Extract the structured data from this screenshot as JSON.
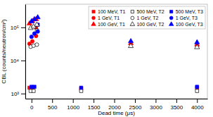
{
  "chart_data": {
    "type": "scatter",
    "xlabel": "Dead time (μs)",
    "ylabel": "CBL (counts/neutron/cm²)",
    "log": "y",
    "grid": false,
    "legend": "upper right",
    "xlim": [
      -150,
      4250
    ],
    "ylim": [
      700,
      500000
    ],
    "xticks": [
      0,
      500,
      1000,
      1500,
      2000,
      2500,
      3000,
      3500,
      4000
    ],
    "yticks": [
      {
        "value": 1000,
        "label": "10³"
      },
      {
        "value": 10000,
        "label": "10⁴"
      },
      {
        "value": 100000,
        "label": "10⁵"
      }
    ],
    "series": [
      {
        "name": "100 MeV, T1",
        "color": "red",
        "marker": "square",
        "x": [
          -50,
          20,
          110,
          1200,
          4000
        ],
        "values": [
          1500,
          1500,
          100000,
          1400,
          1500
        ]
      },
      {
        "name": "500 MeV, T2",
        "color": "black",
        "marker": "open-square",
        "x": [
          -20,
          50,
          130,
          1200,
          4000
        ],
        "values": [
          1200,
          1200,
          80000,
          1200,
          1200
        ]
      },
      {
        "name": "500 MeV, T3",
        "color": "blue",
        "marker": "square",
        "x": [
          0,
          70,
          150,
          1200,
          4000
        ],
        "values": [
          1600,
          1600,
          120000,
          1500,
          1600
        ]
      },
      {
        "name": "1 GeV, T1",
        "color": "red",
        "marker": "circle",
        "x": [
          -50,
          20,
          110
        ],
        "values": [
          32000,
          38000,
          55000
        ]
      },
      {
        "name": "1 GeV, T2",
        "color": "black",
        "marker": "open-circle",
        "x": [
          -20,
          50,
          130
        ],
        "values": [
          26000,
          28000,
          30000
        ]
      },
      {
        "name": "1 GeV, T3",
        "color": "blue",
        "marker": "circle",
        "x": [
          0,
          70,
          150
        ],
        "values": [
          52000,
          65000,
          75000
        ]
      },
      {
        "name": "100 GeV, T1",
        "color": "red",
        "marker": "triangle",
        "x": [
          -50,
          20,
          110,
          2400,
          4000
        ],
        "values": [
          130000,
          155000,
          175000,
          33000,
          30000
        ]
      },
      {
        "name": "100 GeV, T2",
        "color": "black",
        "marker": "open-triangle",
        "x": [
          -20,
          50,
          130,
          2400,
          4000
        ],
        "values": [
          95000,
          105000,
          120000,
          27000,
          25000
        ]
      },
      {
        "name": "100 GeV, T3",
        "color": "blue",
        "marker": "triangle",
        "x": [
          0,
          70,
          150,
          2400,
          4000
        ],
        "values": [
          150000,
          175000,
          200000,
          38000,
          35000
        ]
      }
    ]
  }
}
